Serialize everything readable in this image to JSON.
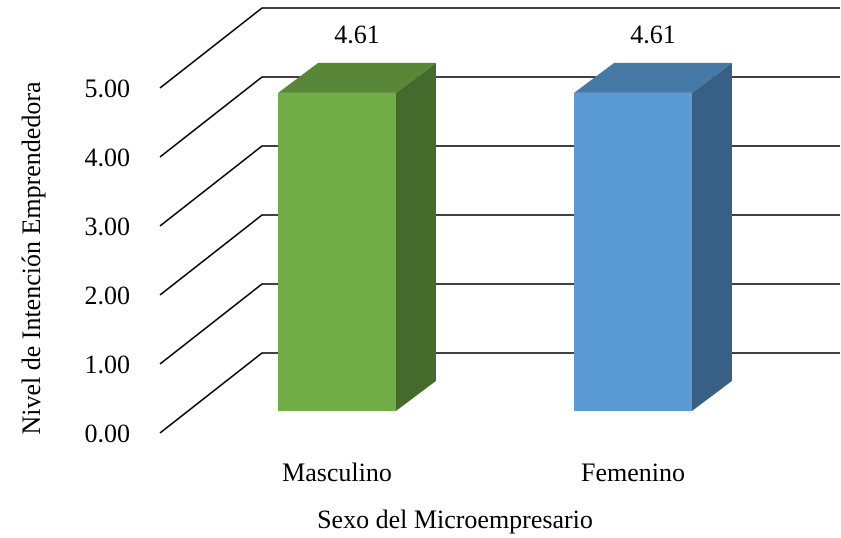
{
  "chart_data": {
    "type": "bar",
    "style": "3d-column",
    "categories": [
      "Masculino",
      "Femenino"
    ],
    "series": [
      {
        "values": [
          4.61,
          4.61
        ],
        "colors": [
          "#70AD47",
          "#5B9BD5"
        ]
      }
    ],
    "data_labels": [
      "4.61",
      "4.61"
    ],
    "xlabel": "Sexo del Microempresario",
    "ylabel": "Nivel de Intención Emprendedora",
    "ylim": [
      0,
      5
    ],
    "yticks": [
      0,
      1,
      2,
      3,
      4,
      5
    ],
    "ytick_labels": [
      "0.00",
      "1.00",
      "2.00",
      "3.00",
      "4.00",
      "5.00"
    ],
    "grid": true,
    "legend": "none"
  }
}
